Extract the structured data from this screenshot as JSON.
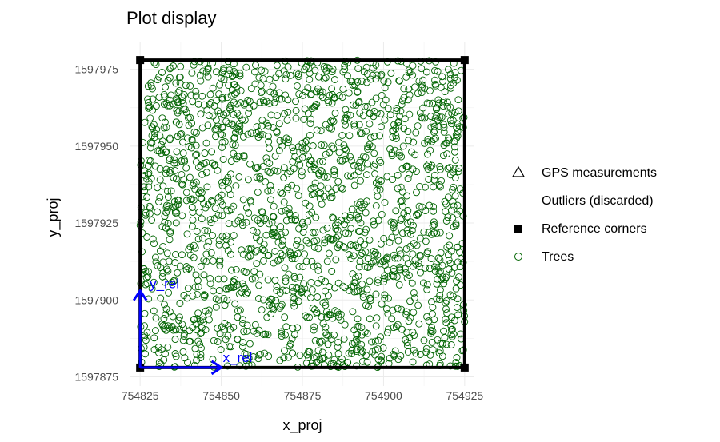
{
  "chart_data": {
    "type": "scatter",
    "title": "Plot display",
    "xlabel": "x_proj",
    "ylabel": "y_proj",
    "xlim": [
      754822,
      754928
    ],
    "ylim": [
      1597872,
      1597984
    ],
    "x_ticks": [
      754825,
      754850,
      754875,
      754900,
      754925
    ],
    "y_ticks": [
      1597875,
      1597900,
      1597925,
      1597950,
      1597975
    ],
    "x_tick_labels": [
      "754825",
      "754850",
      "754875",
      "754900",
      "754925"
    ],
    "y_tick_labels": [
      "1597875",
      "1597900",
      "1597925",
      "1597950",
      "1597975"
    ],
    "grid": true,
    "legend_position": "right",
    "legend": [
      {
        "key": "gps",
        "label": "GPS measurements",
        "shape": "triangle-open",
        "color": "#000000"
      },
      {
        "key": "outliers",
        "label": "Outliers (discarded)",
        "shape": "none",
        "color": "#ffffff"
      },
      {
        "key": "corners",
        "label": "Reference corners",
        "shape": "square-filled",
        "color": "#000000"
      },
      {
        "key": "trees",
        "label": "Trees",
        "shape": "circle-open",
        "color": "#006400"
      }
    ],
    "reference_corners": [
      {
        "x": 754825,
        "y": 1597878
      },
      {
        "x": 754925,
        "y": 1597878
      },
      {
        "x": 754925,
        "y": 1597978
      },
      {
        "x": 754825,
        "y": 1597978
      }
    ],
    "plot_outline_color": "#000000",
    "trees": {
      "color": "#006400",
      "count": 1900,
      "x_range": [
        754825,
        754925
      ],
      "y_range": [
        1597878,
        1597978
      ],
      "note_distribution": "uniform random across the plot"
    },
    "relative_axes": {
      "color": "#0000ff",
      "origin": {
        "x": 754825,
        "y": 1597878
      },
      "x_label": "x_rel",
      "y_label": "y_rel",
      "x_end": {
        "x": 754850,
        "y": 1597878
      },
      "y_end": {
        "x": 754825,
        "y": 1597903
      }
    }
  }
}
